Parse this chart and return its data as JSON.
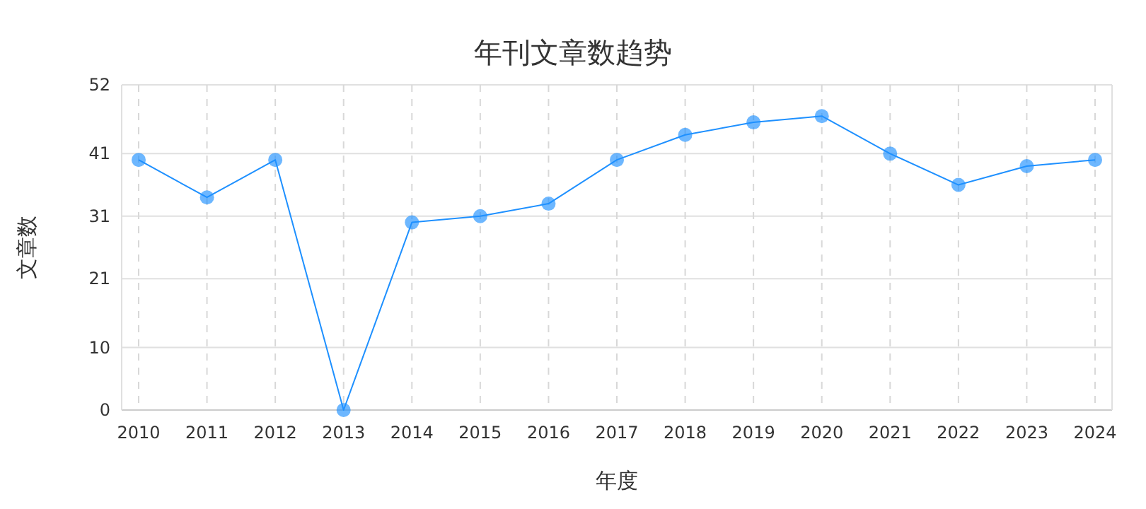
{
  "chart_data": {
    "type": "line",
    "title": "年刊文章数趋势",
    "xlabel": "年度",
    "ylabel": "文章数",
    "categories": [
      "2010",
      "2011",
      "2012",
      "2013",
      "2014",
      "2015",
      "2016",
      "2017",
      "2018",
      "2019",
      "2020",
      "2021",
      "2022",
      "2023",
      "2024"
    ],
    "series": [
      {
        "color": "#1e90ff",
        "values": [
          40,
          34,
          40,
          0,
          30,
          31,
          33,
          40,
          44,
          46,
          47,
          41,
          36,
          39,
          40
        ]
      }
    ],
    "ylim": [
      0,
      52
    ],
    "yticks": [
      0,
      10,
      21,
      31,
      41,
      52
    ],
    "grid": true,
    "marker": "circle",
    "line_style": "solid"
  }
}
